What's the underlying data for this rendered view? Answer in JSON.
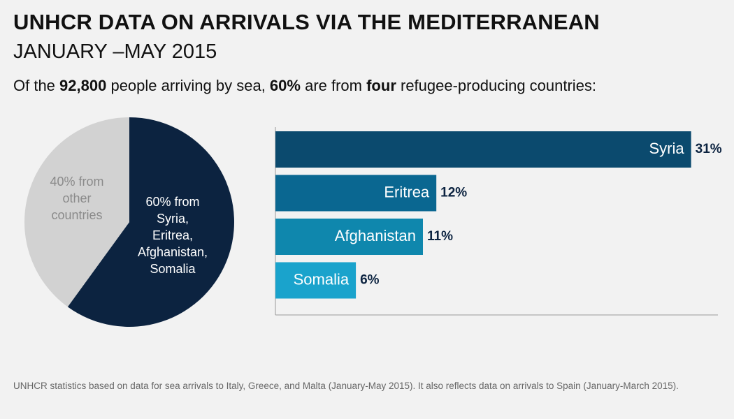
{
  "header": {
    "title": "UNHCR DATA ON ARRIVALS VIA THE MEDITERRANEAN",
    "subtitle": "JANUARY –MAY 2015"
  },
  "summary": {
    "prefix": "Of the ",
    "total": "92,800",
    "middle1": " people arriving by sea, ",
    "share": "60%",
    "middle2": " are from ",
    "count_word": "four",
    "suffix": " refugee-producing countries:"
  },
  "chart_data": [
    {
      "type": "pie",
      "slices": [
        {
          "name": "60% from Syria, Eritrea, Afghanistan, Somalia",
          "value": 60,
          "label_lines": [
            "60% from",
            "Syria,",
            "Eritrea,",
            "Afghanistan,",
            "Somalia"
          ],
          "color": "#0c2340",
          "label_color": "#ffffff"
        },
        {
          "name": "40% from other countries",
          "value": 40,
          "label_lines": [
            "40% from",
            "other",
            "countries"
          ],
          "color": "#d2d2d2",
          "label_color": "#8a8a8a"
        }
      ]
    },
    {
      "type": "bar",
      "orientation": "horizontal",
      "categories": [
        "Syria",
        "Eritrea",
        "Afghanistan",
        "Somalia"
      ],
      "values": [
        31,
        12,
        11,
        6
      ],
      "value_labels": [
        "31%",
        "12%",
        "11%",
        "6%"
      ],
      "colors": [
        "#0b4a6e",
        "#0a6791",
        "#0f87ad",
        "#1aa3cc"
      ],
      "value_label_color": "#0c2340",
      "xlim": [
        0,
        33
      ]
    }
  ],
  "footer": {
    "source": "UNHCR statistics based on data for sea arrivals to Italy, Greece, and Malta (January-May 2015). It also reflects data on arrivals to Spain (January-March 2015)."
  }
}
